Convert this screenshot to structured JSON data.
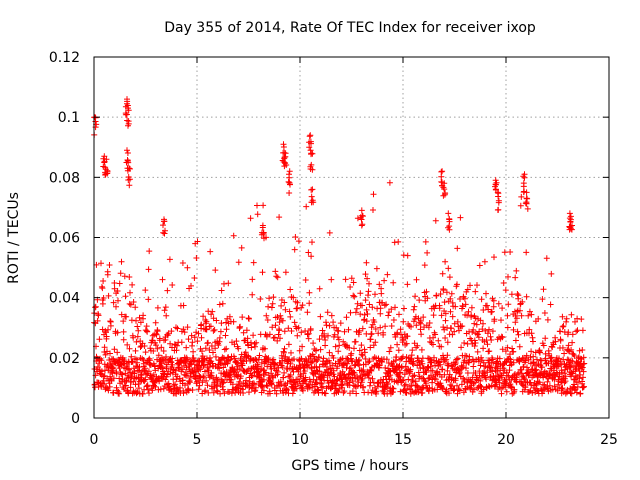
{
  "chart_data": {
    "type": "scatter",
    "title": "Day 355 of 2014, Rate Of TEC Index for receiver ixop",
    "xlabel": "GPS time / hours",
    "ylabel": "ROTI / TECUs",
    "xlim": [
      0,
      25
    ],
    "ylim": [
      0,
      0.12
    ],
    "grid": true,
    "xticks": [
      0,
      5,
      10,
      15,
      20,
      25
    ],
    "xtick_labels": [
      "0",
      "5",
      "10",
      "15",
      "20",
      "25"
    ],
    "yticks": [
      0,
      0.02,
      0.04,
      0.06,
      0.08,
      0.1,
      0.12
    ],
    "ytick_labels": [
      "0",
      "0.02",
      "0.04",
      "0.06",
      "0.08",
      "0.1",
      "0.12"
    ],
    "marker": "+",
    "color": "#ff0000",
    "data_x_range": [
      0,
      23.8
    ],
    "notable_points": [
      {
        "x": 0.05,
        "y": 0.1
      },
      {
        "x": 0.5,
        "y": 0.087
      },
      {
        "x": 0.6,
        "y": 0.086
      },
      {
        "x": 1.6,
        "y": 0.106
      },
      {
        "x": 1.65,
        "y": 0.103
      },
      {
        "x": 1.6,
        "y": 0.089
      },
      {
        "x": 1.7,
        "y": 0.083
      },
      {
        "x": 3.4,
        "y": 0.066
      },
      {
        "x": 8.2,
        "y": 0.064
      },
      {
        "x": 9.2,
        "y": 0.091
      },
      {
        "x": 9.3,
        "y": 0.088
      },
      {
        "x": 9.5,
        "y": 0.082
      },
      {
        "x": 10.5,
        "y": 0.094
      },
      {
        "x": 10.55,
        "y": 0.088
      },
      {
        "x": 10.6,
        "y": 0.076
      },
      {
        "x": 13.0,
        "y": 0.069
      },
      {
        "x": 16.9,
        "y": 0.082
      },
      {
        "x": 17.0,
        "y": 0.078
      },
      {
        "x": 17.2,
        "y": 0.068
      },
      {
        "x": 19.5,
        "y": 0.079
      },
      {
        "x": 19.6,
        "y": 0.075
      },
      {
        "x": 20.9,
        "y": 0.081
      },
      {
        "x": 21.0,
        "y": 0.075
      },
      {
        "x": 23.1,
        "y": 0.068
      },
      {
        "x": 23.15,
        "y": 0.067
      }
    ]
  }
}
